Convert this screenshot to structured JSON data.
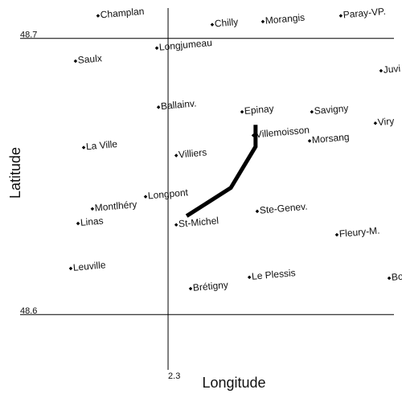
{
  "chart_data": {
    "type": "scatter",
    "xlabel": "Longitude",
    "ylabel": "Latitude",
    "xlim": [
      2.2474,
      2.3803
    ],
    "ylim": [
      48.58,
      48.711
    ],
    "xticks": [
      2.3
    ],
    "yticks": [
      48.6,
      48.7
    ],
    "labels": [
      "Champlan",
      "Chilly",
      "Morangis",
      "Paray-VP.",
      "Saulx",
      "Longjumeau",
      "Juvi",
      "Ballainv.",
      "Epinay",
      "Savigny",
      "Viry",
      "La Ville",
      "Villemoisson",
      "Morsang",
      "Villiers",
      "Montlhéry",
      "Longpont",
      "Ste-Genev.",
      "Linas",
      "St-Michel",
      "Fleury-M.",
      "Leuville",
      "Le Plessis",
      "Brétigny",
      "Bo"
    ],
    "x": [
      2.2751,
      2.3157,
      2.3337,
      2.3614,
      2.2671,
      2.296,
      2.3757,
      2.2966,
      2.3263,
      2.3511,
      2.3737,
      2.27,
      2.3303,
      2.3503,
      2.3029,
      2.2731,
      2.292,
      2.3317,
      2.268,
      2.3029,
      2.36,
      2.2654,
      2.3289,
      2.308,
      2.3786
    ],
    "y": [
      48.7082,
      48.705,
      48.7061,
      48.7082,
      48.6918,
      48.6965,
      48.6883,
      48.6751,
      48.6734,
      48.6734,
      48.6693,
      48.6605,
      48.6649,
      48.6629,
      48.6576,
      48.6383,
      48.6427,
      48.6374,
      48.633,
      48.6325,
      48.6289,
      48.6167,
      48.6135,
      48.6094,
      48.6132
    ],
    "color": "#000000",
    "route": {
      "x": [
        2.3311,
        2.3311,
        2.3223,
        2.3066
      ],
      "y": [
        48.6687,
        48.6608,
        48.6459,
        48.6357
      ],
      "color": "#000000"
    }
  }
}
